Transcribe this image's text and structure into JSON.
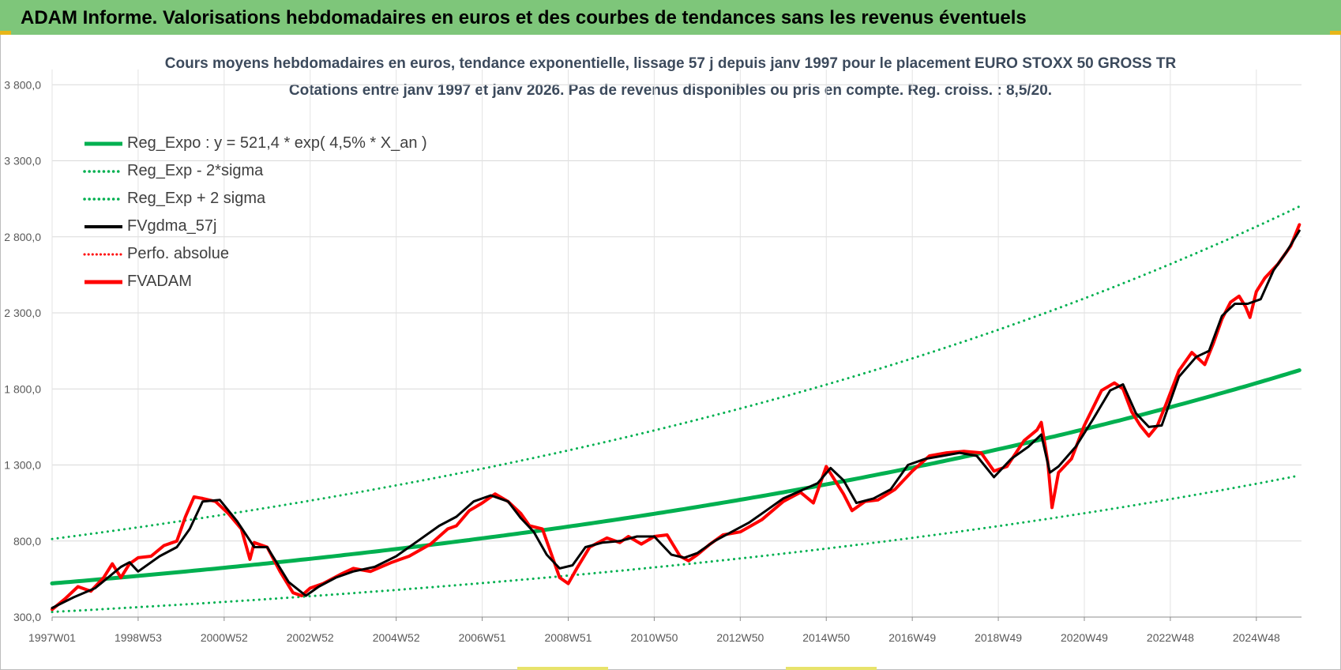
{
  "header": {
    "title": "ADAM Informe. Valorisations hebdomadaires en euros et des courbes de tendances sans les revenus éventuels"
  },
  "chart_data": {
    "type": "line",
    "title_line1": "Cours moyens  hebdomadaires en euros, tendance exponentielle, lissage 57 j depuis janv 1997 pour le placement EURO STOXX 50 GROSS TR",
    "title_line2": "Cotations entre janv 1997 et janv 2026. Pas de revenus disponibles ou pris  en compte. Reg. croiss. : 8,5/20.",
    "xlabel": "",
    "ylabel": "",
    "x_range": [
      1997.0,
      2026.05
    ],
    "ylim": [
      300,
      3900
    ],
    "y_ticks": [
      300,
      800,
      1300,
      1800,
      2300,
      2800,
      3300,
      3800
    ],
    "y_tick_labels": [
      "300,0",
      "800,0",
      "1 300,0",
      "1 800,0",
      "2 300,0",
      "2 800,0",
      "3 300,0",
      "3 800,0"
    ],
    "x_ticks": [
      1997.0,
      1999.0,
      2001.0,
      2003.0,
      2005.0,
      2007.0,
      2009.0,
      2011.0,
      2013.0,
      2015.0,
      2017.0,
      2019.0,
      2021.0,
      2023.0,
      2025.0
    ],
    "x_tick_labels": [
      "1997W01",
      "1998W53",
      "2000W52",
      "2002W52",
      "2004W52",
      "2006W51",
      "2008W51",
      "2010W50",
      "2012W50",
      "2014W50",
      "2016W49",
      "2018W49",
      "2020W49",
      "2022W48",
      "2024W48"
    ],
    "grid": true,
    "legend_position": "top-left",
    "series": [
      {
        "name": "Reg_Expo : y = 521,4 * exp( 4,5% *  X_an )",
        "color": "#00b050",
        "style": "solid",
        "width": 5,
        "formula": {
          "a": 521.4,
          "rate": 0.045,
          "multiplier": 1.0
        }
      },
      {
        "name": "Reg_Exp - 2*sigma",
        "color": "#00b050",
        "style": "dotted",
        "width": 3,
        "formula": {
          "a": 521.4,
          "rate": 0.045,
          "multiplier": 0.64
        }
      },
      {
        "name": "Reg_Exp + 2 sigma",
        "color": "#00b050",
        "style": "dotted",
        "width": 3,
        "formula": {
          "a": 521.4,
          "rate": 0.045,
          "multiplier": 1.56
        }
      },
      {
        "name": "FVgdma_57j",
        "color": "#000000",
        "style": "solid",
        "width": 3,
        "x": [
          1997.0,
          1997.5,
          1998.0,
          1998.3,
          1998.6,
          1998.8,
          1999.0,
          1999.5,
          1999.9,
          2000.2,
          2000.5,
          2000.9,
          2001.3,
          2001.7,
          2002.0,
          2002.5,
          2002.9,
          2003.2,
          2003.6,
          2004.0,
          2004.5,
          2005.0,
          2005.5,
          2006.0,
          2006.4,
          2006.8,
          2007.2,
          2007.6,
          2007.9,
          2008.2,
          2008.5,
          2008.8,
          2009.1,
          2009.4,
          2009.8,
          2010.2,
          2010.6,
          2011.0,
          2011.4,
          2011.7,
          2012.0,
          2012.4,
          2012.8,
          2013.2,
          2013.6,
          2014.0,
          2014.4,
          2014.8,
          2015.1,
          2015.4,
          2015.7,
          2016.1,
          2016.5,
          2016.9,
          2017.3,
          2017.7,
          2018.1,
          2018.5,
          2018.9,
          2019.3,
          2019.7,
          2020.0,
          2020.2,
          2020.4,
          2020.8,
          2021.2,
          2021.6,
          2021.9,
          2022.2,
          2022.5,
          2022.8,
          2023.2,
          2023.6,
          2023.9,
          2024.2,
          2024.5,
          2024.8,
          2025.1,
          2025.4,
          2025.7,
          2026.0
        ],
        "y": [
          360,
          430,
          490,
          560,
          630,
          660,
          600,
          700,
          760,
          880,
          1060,
          1070,
          930,
          760,
          760,
          530,
          440,
          500,
          560,
          600,
          630,
          700,
          800,
          900,
          960,
          1060,
          1100,
          1060,
          950,
          860,
          710,
          620,
          640,
          760,
          790,
          800,
          830,
          830,
          710,
          690,
          720,
          800,
          860,
          920,
          1000,
          1080,
          1130,
          1180,
          1280,
          1200,
          1050,
          1080,
          1140,
          1300,
          1340,
          1360,
          1380,
          1360,
          1220,
          1340,
          1420,
          1500,
          1250,
          1290,
          1420,
          1600,
          1790,
          1830,
          1640,
          1550,
          1560,
          1880,
          2010,
          2050,
          2280,
          2360,
          2360,
          2390,
          2580,
          2700,
          2840
        ]
      },
      {
        "name": "Perfo. absolue",
        "color": "#ff0000",
        "style": "dotted",
        "width": 3
      },
      {
        "name": "FVADAM",
        "color": "#ff0000",
        "style": "solid",
        "width": 4,
        "x": [
          1997.0,
          1997.3,
          1997.6,
          1997.9,
          1998.2,
          1998.4,
          1998.6,
          1998.8,
          1999.0,
          1999.3,
          1999.6,
          1999.9,
          2000.1,
          2000.3,
          2000.5,
          2000.8,
          2001.1,
          2001.4,
          2001.6,
          2001.7,
          2002.0,
          2002.3,
          2002.6,
          2002.8,
          2003.0,
          2003.3,
          2003.7,
          2004.0,
          2004.4,
          2004.9,
          2005.3,
          2005.8,
          2006.2,
          2006.4,
          2006.7,
          2007.0,
          2007.3,
          2007.6,
          2007.9,
          2008.1,
          2008.4,
          2008.6,
          2008.8,
          2009.0,
          2009.2,
          2009.5,
          2009.9,
          2010.2,
          2010.4,
          2010.7,
          2011.0,
          2011.3,
          2011.6,
          2011.8,
          2012.0,
          2012.3,
          2012.6,
          2013.0,
          2013.5,
          2014.0,
          2014.4,
          2014.7,
          2015.0,
          2015.2,
          2015.4,
          2015.6,
          2015.9,
          2016.2,
          2016.6,
          2017.0,
          2017.4,
          2017.8,
          2018.2,
          2018.6,
          2018.9,
          2019.2,
          2019.6,
          2019.9,
          2020.0,
          2020.15,
          2020.25,
          2020.4,
          2020.7,
          2021.0,
          2021.4,
          2021.7,
          2021.9,
          2022.1,
          2022.3,
          2022.5,
          2022.7,
          2022.9,
          2023.2,
          2023.5,
          2023.8,
          2024.0,
          2024.2,
          2024.4,
          2024.6,
          2024.75,
          2024.85,
          2025.0,
          2025.2,
          2025.5,
          2025.8,
          2026.0
        ],
        "y": [
          350,
          420,
          500,
          470,
          560,
          650,
          560,
          650,
          690,
          700,
          770,
          800,
          960,
          1090,
          1080,
          1060,
          980,
          880,
          680,
          790,
          760,
          600,
          460,
          440,
          490,
          520,
          580,
          620,
          600,
          660,
          700,
          780,
          880,
          900,
          1000,
          1050,
          1110,
          1060,
          980,
          900,
          880,
          720,
          560,
          520,
          620,
          760,
          820,
          790,
          830,
          780,
          830,
          840,
          700,
          670,
          710,
          780,
          840,
          860,
          940,
          1060,
          1120,
          1050,
          1290,
          1200,
          1110,
          1000,
          1060,
          1070,
          1140,
          1260,
          1360,
          1380,
          1390,
          1380,
          1260,
          1290,
          1460,
          1530,
          1580,
          1320,
          1020,
          1250,
          1340,
          1560,
          1790,
          1840,
          1800,
          1650,
          1560,
          1490,
          1560,
          1700,
          1920,
          2040,
          1960,
          2100,
          2260,
          2370,
          2410,
          2340,
          2270,
          2440,
          2530,
          2620,
          2740,
          2880
        ]
      }
    ]
  }
}
